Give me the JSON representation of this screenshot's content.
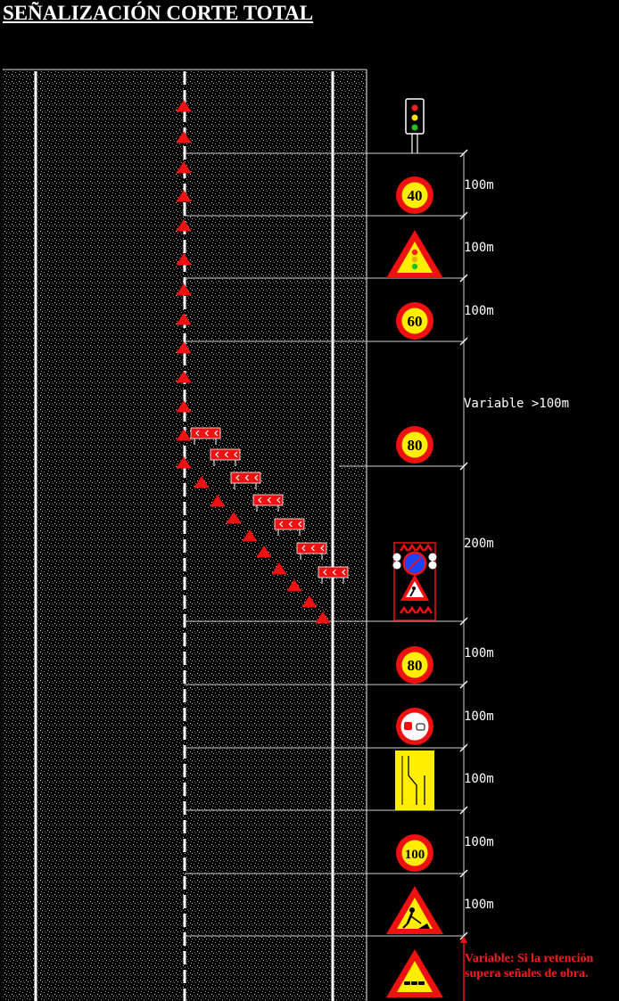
{
  "title": "SEÑALIZACIÓN CORTE TOTAL",
  "colors": {
    "sign_red": "#ee1111",
    "sign_yellow": "#ffee00",
    "asphalt": "#000000",
    "line_white": "#ffffff"
  },
  "signs": [
    {
      "type": "traffic-light-icon",
      "label": ""
    },
    {
      "type": "speed-limit",
      "label": "40"
    },
    {
      "type": "warning-traffic-light",
      "label": ""
    },
    {
      "type": "speed-limit",
      "label": "60"
    },
    {
      "type": "speed-limit",
      "label": "80"
    },
    {
      "type": "works-vehicle-panel",
      "label": ""
    },
    {
      "type": "speed-limit",
      "label": "80"
    },
    {
      "type": "no-overtaking",
      "label": ""
    },
    {
      "type": "lane-closure-panel",
      "label": ""
    },
    {
      "type": "speed-limit",
      "label": "100"
    },
    {
      "type": "roadworks-warning",
      "label": ""
    },
    {
      "type": "queue-warning",
      "label": ""
    }
  ],
  "distances": [
    "100m",
    "100m",
    "100m",
    "Variable  >100m",
    "200m",
    "100m",
    "100m",
    "100m",
    "100m",
    "100m"
  ],
  "note": "Variable: Si la retención supera señales de obra."
}
